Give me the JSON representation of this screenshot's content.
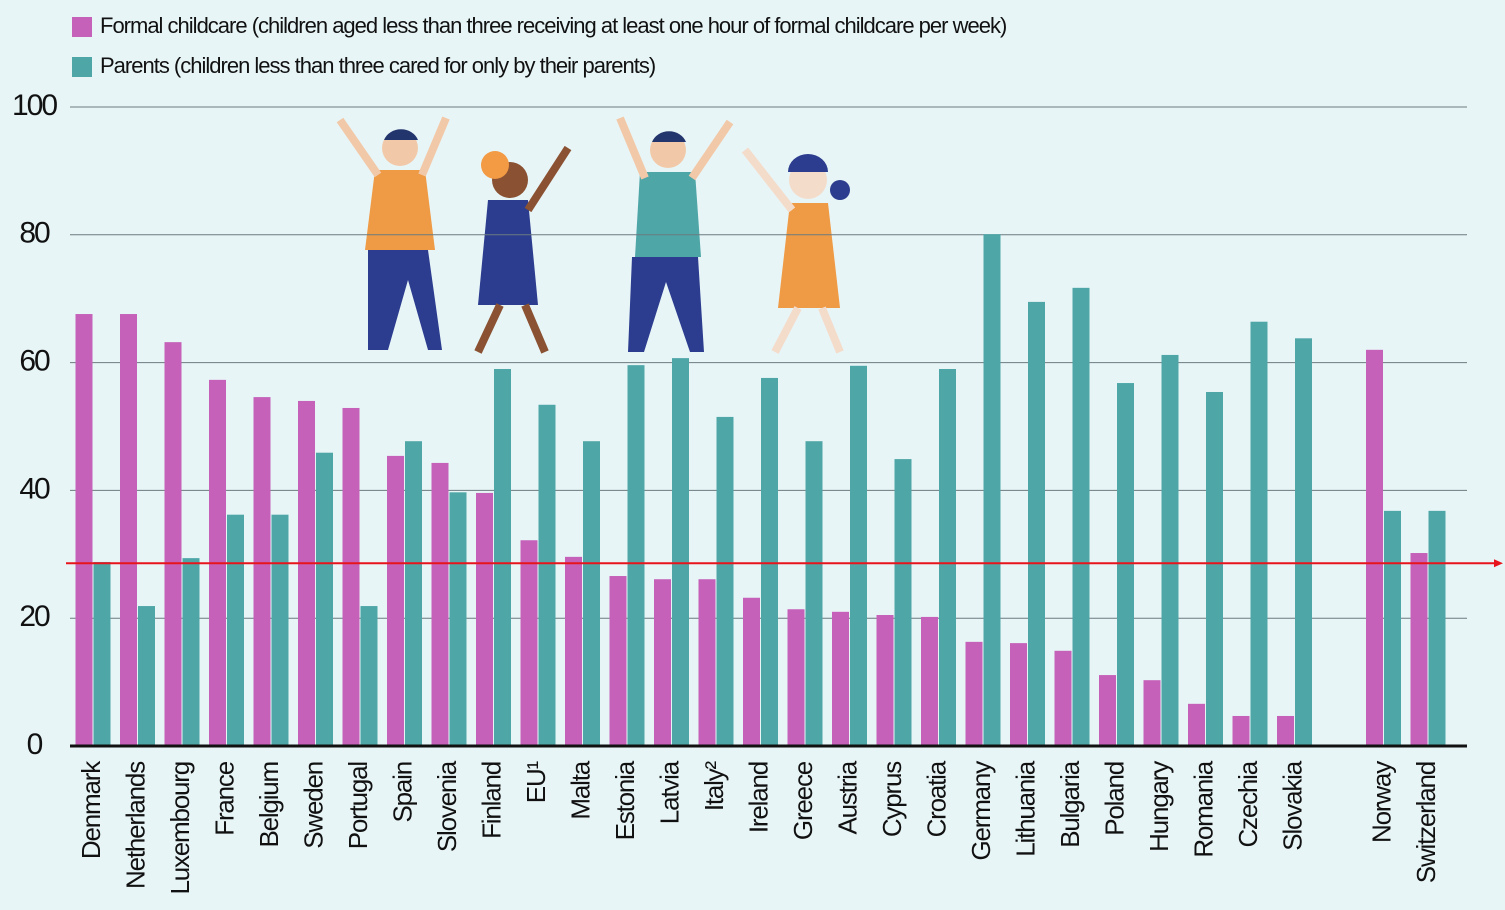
{
  "chart_data": {
    "type": "bar",
    "categories": [
      "Denmark",
      "Netherlands",
      "Luxembourg",
      "France",
      "Belgium",
      "Sweden",
      "Portugal",
      "Spain",
      "Slovenia",
      "Finland",
      "EU¹",
      "Malta",
      "Estonia",
      "Latvia",
      "Italy²",
      "Ireland",
      "Greece",
      "Austria",
      "Cyprus",
      "Croatia",
      "Germany",
      "Lithuania",
      "Bulgaria",
      "Poland",
      "Hungary",
      "Romania",
      "Czechia",
      "Slovakia",
      null,
      "Norway",
      "Switzerland"
    ],
    "series": [
      {
        "name": "Formal childcare (children aged less than three receiving at least one hour of formal childcare per week)",
        "color": "#c561b9",
        "values": [
          67.6,
          67.6,
          63.2,
          57.3,
          54.6,
          54.0,
          52.9,
          45.4,
          44.3,
          39.6,
          32.2,
          29.6,
          26.6,
          26.1,
          26.1,
          23.2,
          21.4,
          21.0,
          20.5,
          20.2,
          16.3,
          16.1,
          14.9,
          11.1,
          10.3,
          6.6,
          4.7,
          4.7,
          null,
          62.0,
          30.2
        ]
      },
      {
        "name": "Parents (children less than three cared for only by their parents)",
        "color": "#4ea6a7",
        "values": [
          28.8,
          21.9,
          29.4,
          36.2,
          36.2,
          45.9,
          21.9,
          47.7,
          39.7,
          59.0,
          53.4,
          47.7,
          59.6,
          60.7,
          51.5,
          57.6,
          47.7,
          59.5,
          44.9,
          59.0,
          80.1,
          69.5,
          71.7,
          56.8,
          61.2,
          55.4,
          66.4,
          63.8,
          null,
          36.8,
          36.8
        ]
      }
    ],
    "ylim": [
      0,
      100
    ],
    "yticks": [
      0,
      20,
      40,
      60,
      80,
      100
    ],
    "grid": true,
    "reference_line": {
      "value": 28.6,
      "color": "#e8141b"
    }
  }
}
